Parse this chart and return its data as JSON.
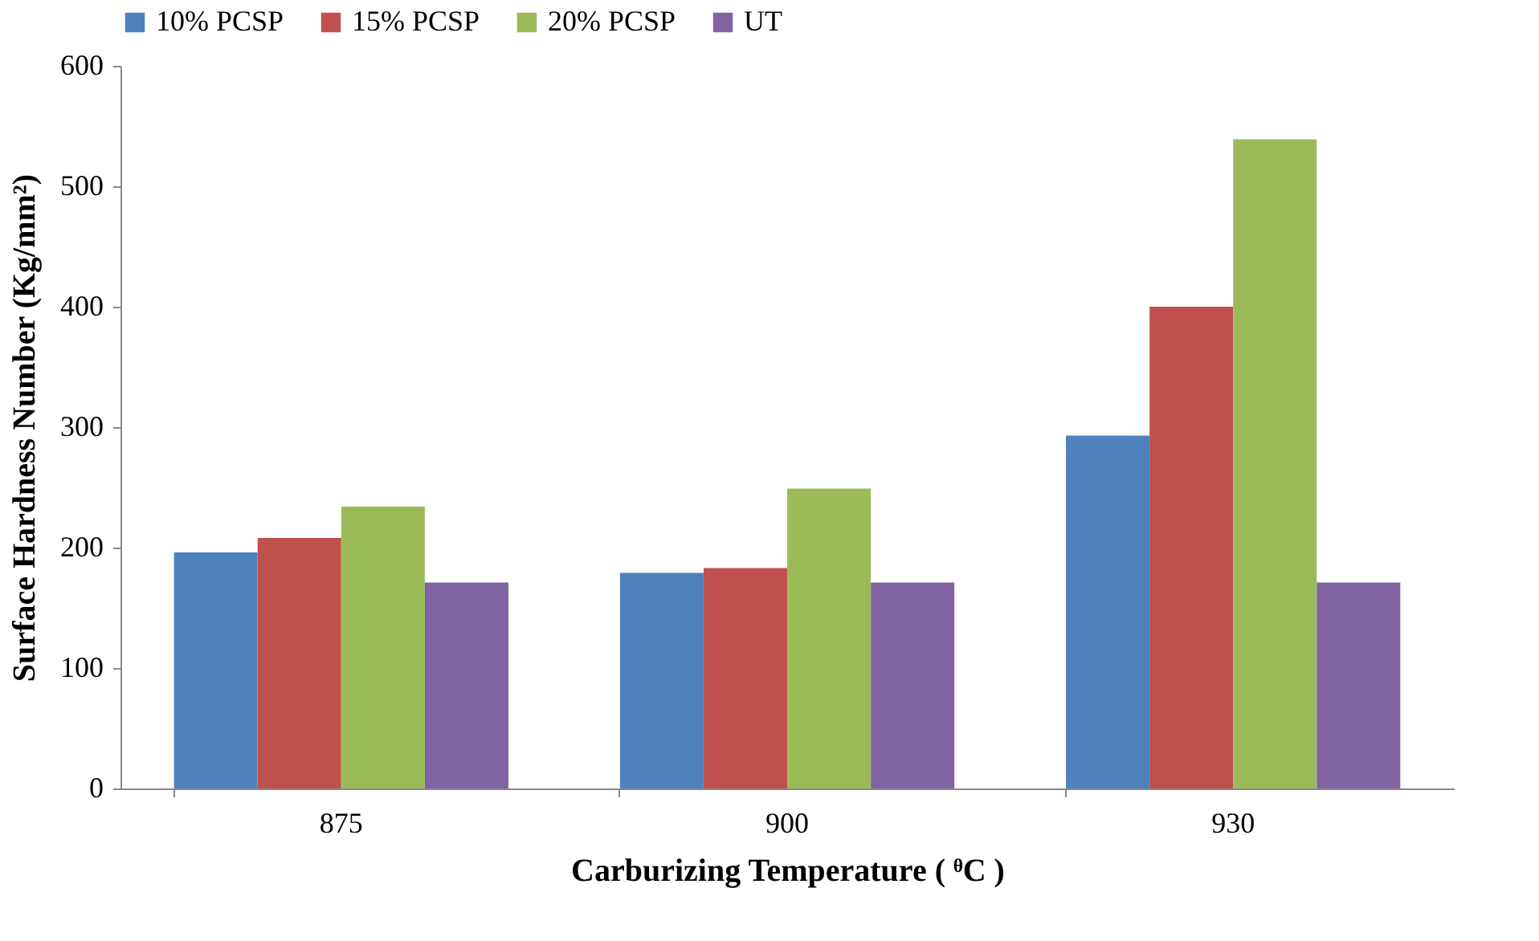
{
  "chart_data": {
    "type": "bar",
    "xlabel": "Carburizing Temperature  ( ᶿC )",
    "ylabel": "Surface Hardness Number (Kg/mm²)",
    "categories": [
      "875",
      "900",
      "930"
    ],
    "series": [
      {
        "name": "10% PCSP",
        "color": "#4f81bd",
        "values": [
          196,
          179,
          293
        ]
      },
      {
        "name": "15% PCSP",
        "color": "#c0504d",
        "values": [
          208,
          183,
          400
        ]
      },
      {
        "name": "20% PCSP",
        "color": "#9bbb59",
        "values": [
          234,
          249,
          539
        ]
      },
      {
        "name": "UT",
        "color": "#8064a2",
        "values": [
          171,
          171,
          171
        ]
      }
    ],
    "ylim": [
      0,
      600
    ],
    "yticks": [
      0,
      100,
      200,
      300,
      400,
      500,
      600
    ],
    "grid": false,
    "legend": "top"
  }
}
